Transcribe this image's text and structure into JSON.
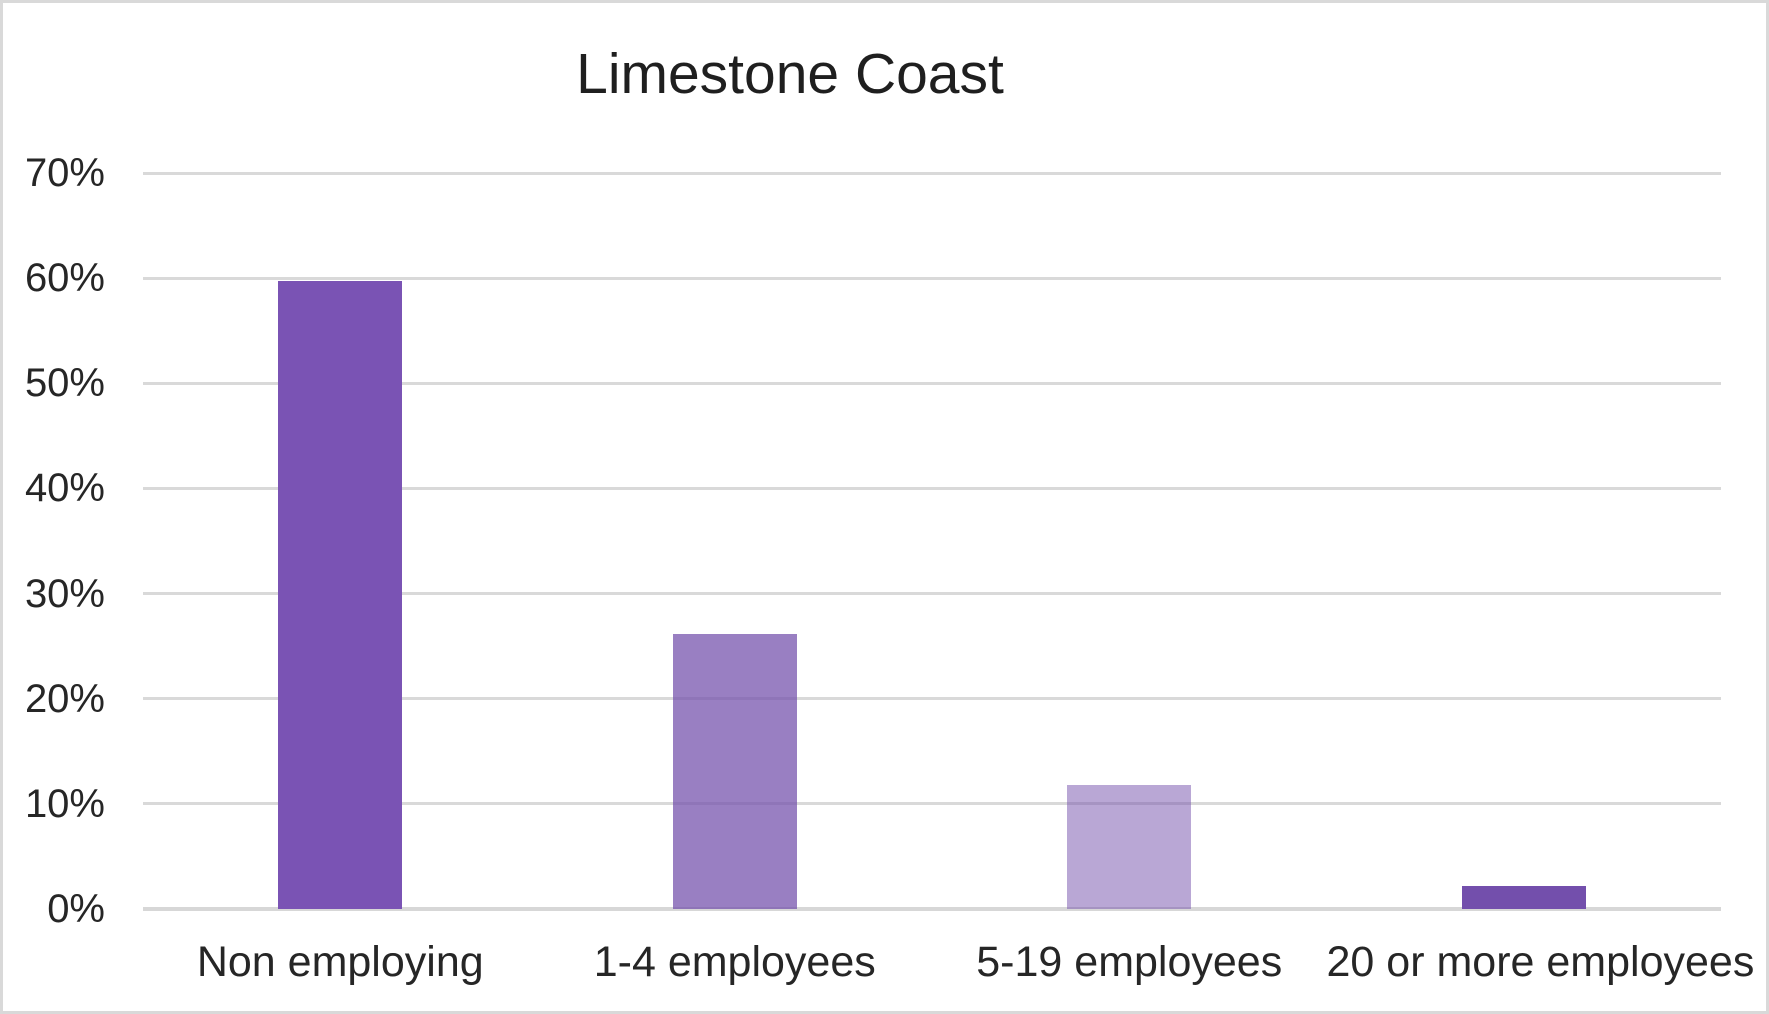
{
  "title": "Limestone Coast",
  "chart_data": {
    "type": "bar",
    "title": "Limestone Coast",
    "categories": [
      "Non employing",
      "1-4 employees",
      "5-19 employees",
      "20 or more employees"
    ],
    "values": [
      59.7,
      26.2,
      11.8,
      2.2
    ],
    "value_unit": "%",
    "xlabel": "",
    "ylabel": "",
    "ylim": [
      0,
      70
    ],
    "ytick_step": 10,
    "ytick_labels": [
      "0%",
      "10%",
      "20%",
      "30%",
      "40%",
      "50%",
      "60%",
      "70%"
    ],
    "grid": true,
    "legend": false,
    "bar_colors": [
      "#7A53B4",
      "rgba(115,79,172,0.73)",
      "rgba(115,79,172,0.50)",
      "#734FAC"
    ],
    "gridline_color": "#d9d9d9",
    "axis_line_color": "#d7d7d7",
    "text_color": "#262626",
    "title_color": "#1f1f1f",
    "background_color": "#ffffff",
    "border_color": "#d9d9d9"
  }
}
